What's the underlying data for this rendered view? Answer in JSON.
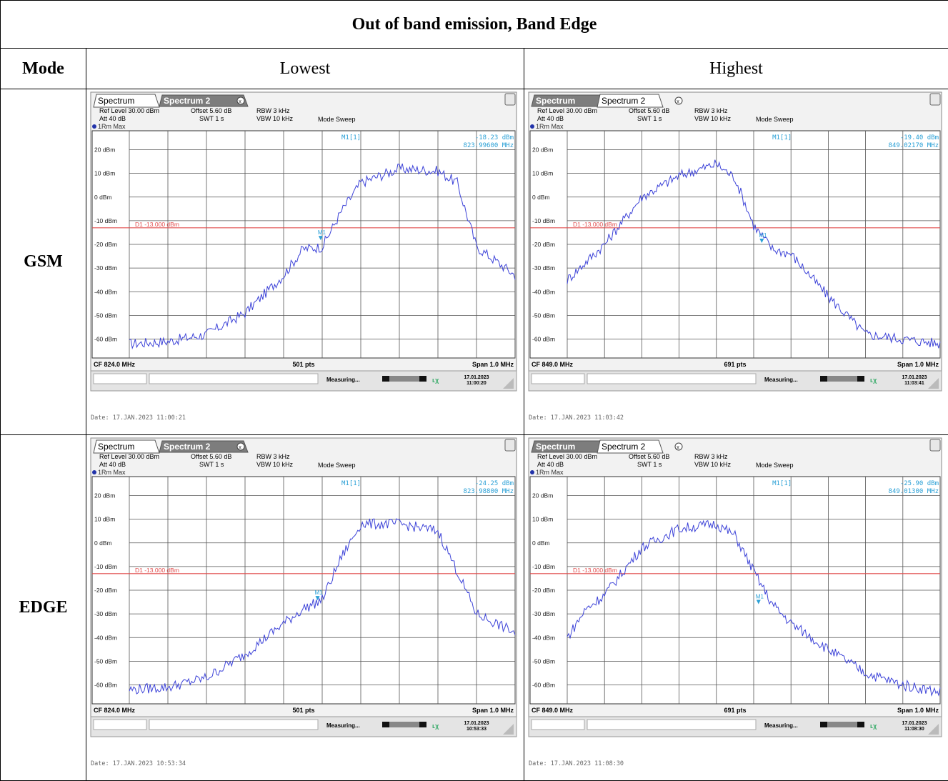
{
  "table": {
    "title": "Out of band emission, Band Edge",
    "col_mode": "Mode",
    "col_lowest": "Lowest",
    "col_highest": "Highest",
    "rows": [
      "GSM",
      "EDGE"
    ]
  },
  "colors": {
    "trace": "#3d43d8",
    "limit": "#e04b4b",
    "marker": "#2aa0d6",
    "grid": "#b0b0b0"
  },
  "panels": [
    {
      "id": "gsm-low",
      "active_tab": 0,
      "tab1": "Spectrum",
      "tab2": "Spectrum 2",
      "ref_level": "Ref Level 30.00 dBm",
      "offset": "Offset 5.60 dB",
      "rbw": "RBW 3 kHz",
      "att": "Att 40 dB",
      "swt": "SWT 1 s",
      "vbw": "VBW 10 kHz",
      "mode": "Mode Sweep",
      "trace_label": "1Rm Max",
      "marker_name": "M1[1]",
      "marker_level": "-18.23 dBm",
      "marker_freq": "823.99600 MHz",
      "marker_tag": "M1",
      "limit_label": "D1 -13.000 dBm",
      "cf": "CF 824.0 MHz",
      "pts": "501 pts",
      "span": "Span 1.0 MHz",
      "status": "Measuring...",
      "stamp_date": "17.01.2023",
      "stamp_time": "11:00:20",
      "date_line": "Date: 17.JAN.2023  11:00:21"
    },
    {
      "id": "gsm-high",
      "active_tab": 1,
      "tab1": "Spectrum",
      "tab2": "Spectrum 2",
      "ref_level": "Ref Level 30.00 dBm",
      "offset": "Offset 5.60 dB",
      "rbw": "RBW 3 kHz",
      "att": "Att 40 dB",
      "swt": "SWT 1 s",
      "vbw": "VBW 10 kHz",
      "mode": "Mode Sweep",
      "trace_label": "1Rm Max",
      "marker_name": "M1[1]",
      "marker_level": "-19.40 dBm",
      "marker_freq": "849.02170 MHz",
      "marker_tag": "M1",
      "limit_label": "D1 -13.000 dBm",
      "cf": "CF 849.0 MHz",
      "pts": "691 pts",
      "span": "Span 1.0 MHz",
      "status": "Measuring...",
      "stamp_date": "17.01.2023",
      "stamp_time": "11:03:41",
      "date_line": "Date: 17.JAN.2023  11:03:42"
    },
    {
      "id": "edge-low",
      "active_tab": 0,
      "tab1": "Spectrum",
      "tab2": "Spectrum 2",
      "ref_level": "Ref Level 30.00 dBm",
      "offset": "Offset 5.60 dB",
      "rbw": "RBW 3 kHz",
      "att": "Att 40 dB",
      "swt": "SWT 1 s",
      "vbw": "VBW 10 kHz",
      "mode": "Mode Sweep",
      "trace_label": "1Rm Max",
      "marker_name": "M1[1]",
      "marker_level": "-24.25 dBm",
      "marker_freq": "823.98800 MHz",
      "marker_tag": "M1",
      "limit_label": "D1 -13.000 dBm",
      "cf": "CF 824.0 MHz",
      "pts": "501 pts",
      "span": "Span 1.0 MHz",
      "status": "Measuring...",
      "stamp_date": "17.01.2023",
      "stamp_time": "10:53:33",
      "date_line": "Date: 17.JAN.2023  10:53:34"
    },
    {
      "id": "edge-high",
      "active_tab": 1,
      "tab1": "Spectrum",
      "tab2": "Spectrum 2",
      "ref_level": "Ref Level 30.00 dBm",
      "offset": "Offset 5.60 dB",
      "rbw": "RBW 3 kHz",
      "att": "Att 40 dB",
      "swt": "SWT 1 s",
      "vbw": "VBW 10 kHz",
      "mode": "Mode Sweep",
      "trace_label": "1Rm Max",
      "marker_name": "M1[1]",
      "marker_level": "-25.90 dBm",
      "marker_freq": "849.01300 MHz",
      "marker_tag": "M1",
      "limit_label": "D1 -13.000 dBm",
      "cf": "CF 849.0 MHz",
      "pts": "691 pts",
      "span": "Span 1.0 MHz",
      "status": "Measuring...",
      "stamp_date": "17.01.2023",
      "stamp_time": "11:08:30",
      "date_line": "Date: 17.JAN.2023  11:08:30"
    }
  ],
  "chart_data": [
    {
      "type": "line",
      "title": "GSM Lowest",
      "y_ticks": [
        "20 dBm",
        "10 dBm",
        "0 dBm",
        "-10 dBm",
        "-20 dBm",
        "-30 dBm",
        "-40 dBm",
        "-50 dBm",
        "-60 dBm"
      ],
      "ylim": [
        -68,
        28
      ],
      "limit": -13,
      "x_mhz": [
        823.5,
        823.6,
        823.7,
        823.8,
        823.9,
        823.95,
        824.0,
        824.05,
        824.1,
        824.2,
        824.3,
        824.35,
        824.4,
        824.5
      ],
      "y_dbm": [
        -62,
        -61,
        -58,
        -49,
        -33,
        -22,
        -21,
        -6,
        6,
        12,
        11,
        6,
        -21,
        -33
      ],
      "marker": {
        "x_mhz": 823.996,
        "y_dbm": -18.23
      }
    },
    {
      "type": "line",
      "title": "GSM Highest",
      "y_ticks": [
        "20 dBm",
        "10 dBm",
        "0 dBm",
        "-10 dBm",
        "-20 dBm",
        "-30 dBm",
        "-40 dBm",
        "-50 dBm",
        "-60 dBm"
      ],
      "ylim": [
        -68,
        28
      ],
      "limit": -13,
      "x_mhz": [
        848.5,
        848.6,
        848.65,
        848.7,
        848.8,
        848.9,
        848.95,
        849.0,
        849.05,
        849.1,
        849.2,
        849.3,
        849.4,
        849.5
      ],
      "y_dbm": [
        -35,
        -20,
        -10,
        0,
        9,
        14,
        8,
        -12,
        -22,
        -24,
        -42,
        -58,
        -60,
        -62
      ],
      "marker": {
        "x_mhz": 849.0217,
        "y_dbm": -19.4
      }
    },
    {
      "type": "line",
      "title": "EDGE Lowest",
      "y_ticks": [
        "20 dBm",
        "10 dBm",
        "0 dBm",
        "-10 dBm",
        "-20 dBm",
        "-30 dBm",
        "-40 dBm",
        "-50 dBm",
        "-60 dBm"
      ],
      "ylim": [
        -68,
        28
      ],
      "limit": -13,
      "x_mhz": [
        823.5,
        823.6,
        823.7,
        823.8,
        823.9,
        823.95,
        824.0,
        824.05,
        824.1,
        824.2,
        824.3,
        824.35,
        824.4,
        824.5
      ],
      "y_dbm": [
        -62,
        -61,
        -57,
        -47,
        -34,
        -28,
        -24,
        -6,
        8,
        8,
        5,
        -12,
        -30,
        -38
      ],
      "marker": {
        "x_mhz": 823.988,
        "y_dbm": -24.25
      }
    },
    {
      "type": "line",
      "title": "EDGE Highest",
      "y_ticks": [
        "20 dBm",
        "10 dBm",
        "0 dBm",
        "-10 dBm",
        "-20 dBm",
        "-30 dBm",
        "-40 dBm",
        "-50 dBm",
        "-60 dBm"
      ],
      "ylim": [
        -68,
        28
      ],
      "limit": -13,
      "x_mhz": [
        848.5,
        848.55,
        848.6,
        848.65,
        848.7,
        848.8,
        848.9,
        848.95,
        849.0,
        849.05,
        849.1,
        849.2,
        849.3,
        849.4,
        849.5
      ],
      "y_dbm": [
        -40,
        -28,
        -22,
        -12,
        -2,
        6,
        8,
        3,
        -12,
        -26,
        -34,
        -45,
        -55,
        -60,
        -63
      ],
      "marker": {
        "x_mhz": 849.013,
        "y_dbm": -25.9
      }
    }
  ]
}
